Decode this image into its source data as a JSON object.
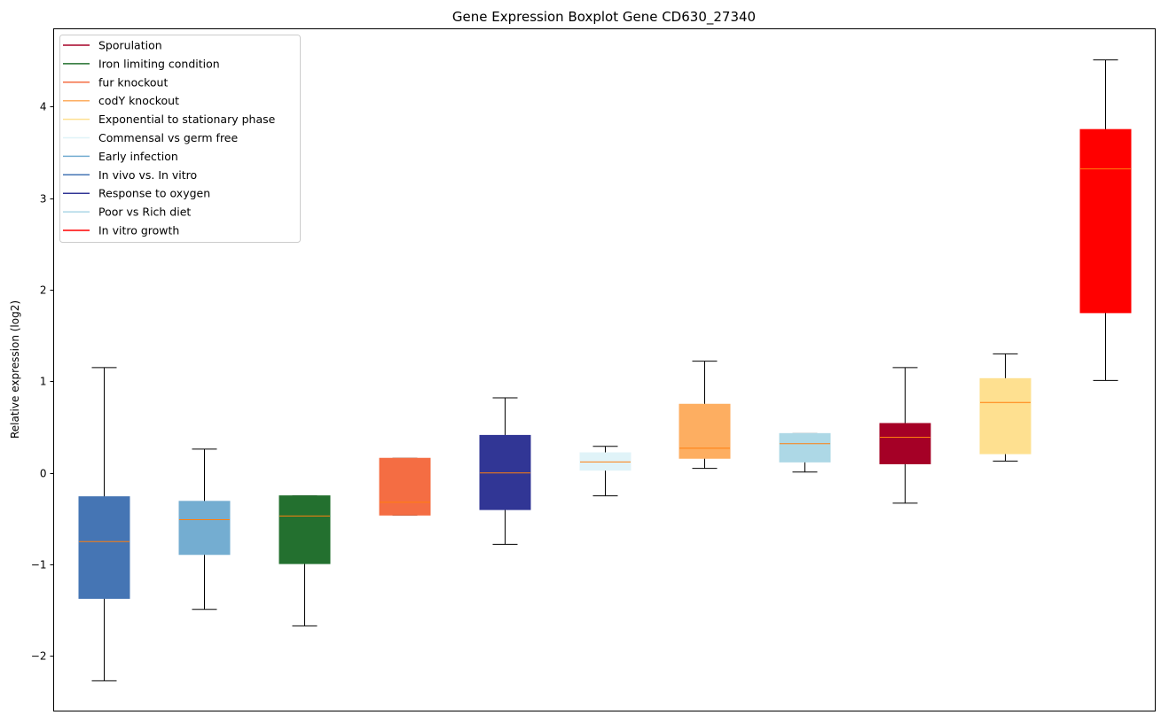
{
  "chart_data": {
    "type": "box",
    "title": "Gene Expression Boxplot Gene CD630_27340",
    "xlabel": "",
    "ylabel": "Relative expression (log2)",
    "ylim": [
      -2.6,
      4.85
    ],
    "yticks": [
      -2,
      -1,
      0,
      1,
      2,
      3,
      4
    ],
    "ytick_labels": [
      "−2",
      "−1",
      "0",
      "1",
      "2",
      "3",
      "4"
    ],
    "grid": false,
    "legend_position": "top-left",
    "median_color": "#ff7f0e",
    "legend": [
      {
        "label": "Sporulation",
        "color": "#a50026"
      },
      {
        "label": "Iron limiting condition",
        "color": "#23702f"
      },
      {
        "label": "fur knockout",
        "color": "#f46d43"
      },
      {
        "label": "codY knockout",
        "color": "#fdae61"
      },
      {
        "label": "Exponential to stationary phase",
        "color": "#fee090"
      },
      {
        "label": "Commensal vs germ free",
        "color": "#e0f3f8"
      },
      {
        "label": "Early infection",
        "color": "#74add1"
      },
      {
        "label": "In vivo vs. In vitro",
        "color": "#4575b4"
      },
      {
        "label": "Response to oxygen",
        "color": "#313695"
      },
      {
        "label": "Poor vs Rich diet",
        "color": "#add8e6"
      },
      {
        "label": "In vitro growth",
        "color": "#ff0000"
      }
    ],
    "boxes": [
      {
        "series": "In vivo vs. In vitro",
        "color": "#4575b4",
        "whislo": -2.27,
        "q1": -1.37,
        "med": -0.75,
        "q3": -0.26,
        "whishi": 1.15
      },
      {
        "series": "Early infection",
        "color": "#74add1",
        "whislo": -1.49,
        "q1": -0.89,
        "med": -0.51,
        "q3": -0.31,
        "whishi": 0.26
      },
      {
        "series": "Iron limiting condition",
        "color": "#23702f",
        "whislo": -1.67,
        "q1": -0.99,
        "med": -0.47,
        "q3": -0.25,
        "whishi": -0.25
      },
      {
        "series": "fur knockout",
        "color": "#f46d43",
        "whislo": -0.46,
        "q1": -0.46,
        "med": -0.32,
        "q3": 0.16,
        "whishi": 0.16
      },
      {
        "series": "Response to oxygen",
        "color": "#313695",
        "whislo": -0.78,
        "q1": -0.4,
        "med": 0.0,
        "q3": 0.41,
        "whishi": 0.82
      },
      {
        "series": "Commensal vs germ free",
        "color": "#e0f3f8",
        "whislo": -0.25,
        "q1": 0.03,
        "med": 0.12,
        "q3": 0.22,
        "whishi": 0.29
      },
      {
        "series": "codY knockout",
        "color": "#fdae61",
        "whislo": 0.05,
        "q1": 0.16,
        "med": 0.27,
        "q3": 0.75,
        "whishi": 1.22
      },
      {
        "series": "Poor vs Rich diet",
        "color": "#add8e6",
        "whislo": 0.01,
        "q1": 0.12,
        "med": 0.32,
        "q3": 0.43,
        "whishi": 0.43
      },
      {
        "series": "Sporulation",
        "color": "#a50026",
        "whislo": -0.33,
        "q1": 0.1,
        "med": 0.39,
        "q3": 0.54,
        "whishi": 1.15
      },
      {
        "series": "Exponential to stationary phase",
        "color": "#fee090",
        "whislo": 0.13,
        "q1": 0.21,
        "med": 0.77,
        "q3": 1.03,
        "whishi": 1.3
      },
      {
        "series": "In vitro growth",
        "color": "#ff0000",
        "whislo": 1.01,
        "q1": 1.75,
        "med": 3.32,
        "q3": 3.75,
        "whishi": 4.51
      }
    ]
  }
}
